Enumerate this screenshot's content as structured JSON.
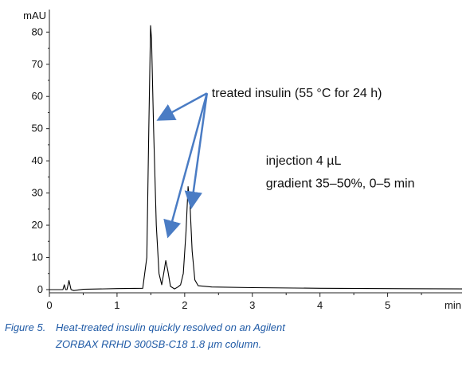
{
  "chart_data": {
    "type": "line",
    "title": "",
    "xlabel": "min",
    "ylabel": "mAU",
    "xlim": [
      0,
      6.1
    ],
    "ylim": [
      -1,
      87
    ],
    "x_ticks": [
      0,
      1,
      2,
      3,
      4,
      5
    ],
    "y_ticks": [
      0,
      10,
      20,
      30,
      40,
      50,
      60,
      70,
      80
    ],
    "grid": false,
    "legend": "none",
    "series": [
      {
        "color": "#000000",
        "points": [
          [
            0.0,
            0.0
          ],
          [
            0.2,
            0.0
          ],
          [
            0.22,
            1.5
          ],
          [
            0.24,
            0.0
          ],
          [
            0.26,
            0.0
          ],
          [
            0.29,
            2.8
          ],
          [
            0.32,
            0.0
          ],
          [
            0.36,
            -0.3
          ],
          [
            0.5,
            0.1
          ],
          [
            1.0,
            0.3
          ],
          [
            1.38,
            0.4
          ],
          [
            1.44,
            10.0
          ],
          [
            1.47,
            50.0
          ],
          [
            1.495,
            82.0
          ],
          [
            1.51,
            78.0
          ],
          [
            1.54,
            50.0
          ],
          [
            1.58,
            20.0
          ],
          [
            1.62,
            5.0
          ],
          [
            1.66,
            1.5
          ],
          [
            1.69,
            5.0
          ],
          [
            1.72,
            9.0
          ],
          [
            1.75,
            6.0
          ],
          [
            1.79,
            1.0
          ],
          [
            1.85,
            0.2
          ],
          [
            1.9,
            0.8
          ],
          [
            1.94,
            1.5
          ],
          [
            1.98,
            5.0
          ],
          [
            2.02,
            18.0
          ],
          [
            2.05,
            32.0
          ],
          [
            2.08,
            26.0
          ],
          [
            2.11,
            12.0
          ],
          [
            2.15,
            3.0
          ],
          [
            2.2,
            1.2
          ],
          [
            2.4,
            0.8
          ],
          [
            3.0,
            0.6
          ],
          [
            4.0,
            0.4
          ],
          [
            5.0,
            0.3
          ],
          [
            6.1,
            0.2
          ]
        ]
      }
    ],
    "annotations": {
      "peaks_label": "treated insulin (55 °C for 24 h)",
      "arrow_targets": [
        [
          1.63,
          53
        ],
        [
          1.76,
          17
        ],
        [
          2.1,
          26
        ]
      ],
      "note_line1": "injection 4 µL",
      "note_line2": "gradient 35–50%, 0–5 min"
    },
    "arrow_color": "#4a7cc4"
  },
  "caption": {
    "label": "Figure 5.",
    "line1": "Heat-treated insulin quickly resolved on an Agilent",
    "line2": "ZORBAX RRHD 300SB-C18 1.8 µm column."
  }
}
